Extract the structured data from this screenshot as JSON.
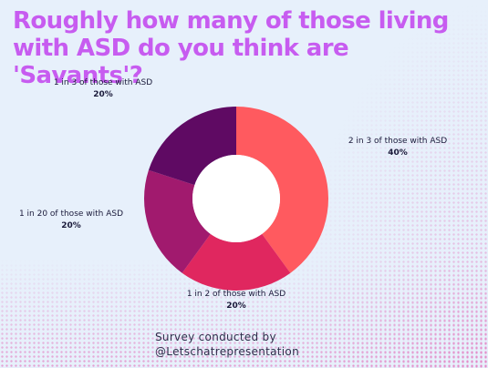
{
  "title": "Roughly how many of those living with ASD do you think are 'Savants'?",
  "credit": {
    "line1": "Survey conducted by",
    "line2": "@Letschatrepresentation"
  },
  "chart_data": {
    "type": "pie",
    "donut": true,
    "slices": [
      {
        "label": "2 in 3 of those with ASD",
        "value": 40,
        "value_label": "40%",
        "color": "#ff5a5f"
      },
      {
        "label": "1 in 2 of those with ASD",
        "value": 20,
        "value_label": "20%",
        "color": "#e0275f"
      },
      {
        "label": "1 in 20 of those with ASD",
        "value": 20,
        "value_label": "20%",
        "color": "#a11a6e"
      },
      {
        "label": "1 in 3 of those with ASD",
        "value": 20,
        "value_label": "20%",
        "color": "#5f0a63"
      }
    ]
  }
}
